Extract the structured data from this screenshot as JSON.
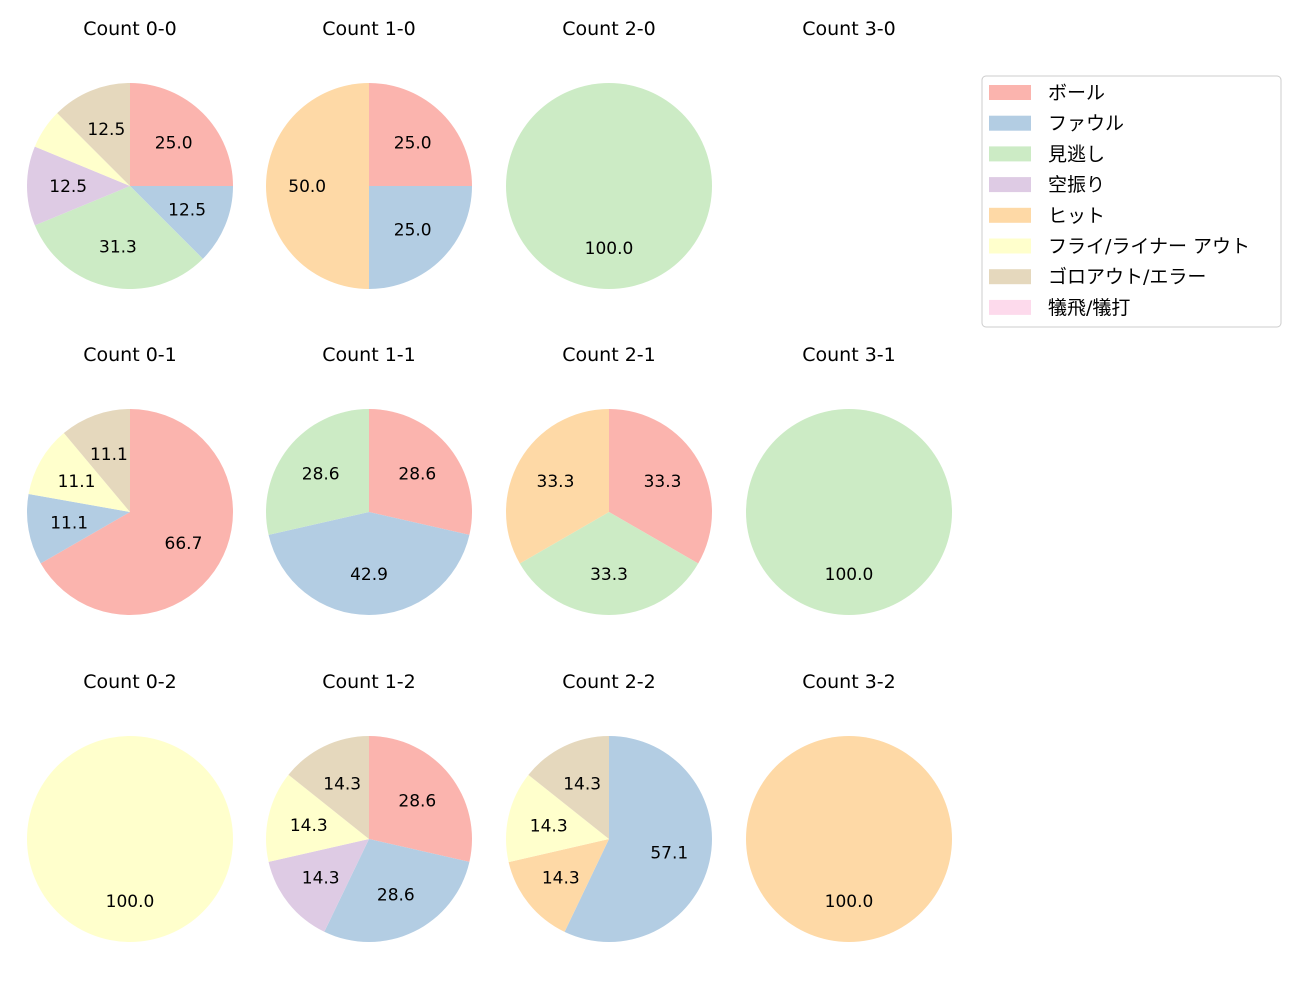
{
  "chart_data": {
    "type": "pie",
    "legend": {
      "placement": "top-right",
      "entries": [
        "ボール",
        "ファウル",
        "見逃し",
        "空振り",
        "ヒット",
        "フライ/ライナー アウト",
        "ゴロアウト/エラー",
        "犠飛/犠打"
      ]
    },
    "colors": [
      "#fbb4ae",
      "#b3cde3",
      "#ccebc5",
      "#decbe4",
      "#fed9a6",
      "#ffffcc",
      "#e5d8bd",
      "#fddaec"
    ],
    "pies": [
      {
        "title": "Count 0-0",
        "values": [
          25,
          12.5,
          31.25,
          12.5,
          0,
          6.25,
          12.5,
          0
        ]
      },
      {
        "title": "Count 1-0",
        "values": [
          25,
          25,
          0,
          0,
          50,
          0,
          0,
          0
        ]
      },
      {
        "title": "Count 2-0",
        "values": [
          0,
          0,
          100,
          0,
          0,
          0,
          0,
          0
        ]
      },
      {
        "title": "Count 3-0",
        "values": [
          0,
          0,
          0,
          0,
          0,
          0,
          0,
          0
        ]
      },
      {
        "title": "Count 0-1",
        "values": [
          66.7,
          11.1,
          0,
          0,
          0,
          11.1,
          11.1,
          0
        ]
      },
      {
        "title": "Count 1-1",
        "values": [
          28.6,
          42.9,
          28.6,
          0,
          0,
          0,
          0,
          0
        ]
      },
      {
        "title": "Count 2-1",
        "values": [
          33.3,
          0,
          33.3,
          0,
          33.3,
          0,
          0,
          0
        ]
      },
      {
        "title": "Count 3-1",
        "values": [
          0,
          0,
          100,
          0,
          0,
          0,
          0,
          0
        ]
      },
      {
        "title": "Count 0-2",
        "values": [
          0,
          0,
          0,
          0,
          0,
          100,
          0,
          0
        ]
      },
      {
        "title": "Count 1-2",
        "values": [
          28.6,
          28.6,
          0,
          14.3,
          0,
          14.3,
          14.3,
          0
        ]
      },
      {
        "title": "Count 2-2",
        "values": [
          0,
          57.1,
          0,
          0,
          14.3,
          14.3,
          14.3,
          0
        ]
      },
      {
        "title": "Count 3-2",
        "values": [
          0,
          0,
          0,
          0,
          100,
          0,
          0,
          0
        ]
      }
    ]
  }
}
